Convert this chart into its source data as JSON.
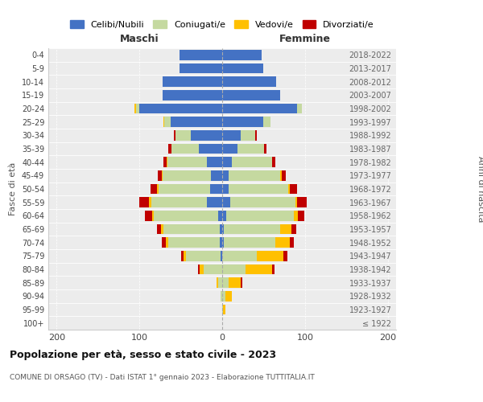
{
  "age_groups": [
    "100+",
    "95-99",
    "90-94",
    "85-89",
    "80-84",
    "75-79",
    "70-74",
    "65-69",
    "60-64",
    "55-59",
    "50-54",
    "45-49",
    "40-44",
    "35-39",
    "30-34",
    "25-29",
    "20-24",
    "15-19",
    "10-14",
    "5-9",
    "0-4"
  ],
  "birth_years": [
    "≤ 1922",
    "1923-1927",
    "1928-1932",
    "1933-1937",
    "1938-1942",
    "1943-1947",
    "1948-1952",
    "1953-1957",
    "1958-1962",
    "1963-1967",
    "1968-1972",
    "1973-1977",
    "1978-1982",
    "1983-1987",
    "1988-1992",
    "1993-1997",
    "1998-2002",
    "2003-2007",
    "2008-2012",
    "2013-2017",
    "2018-2022"
  ],
  "males": {
    "celibi": [
      0,
      0,
      0,
      0,
      0,
      2,
      3,
      3,
      5,
      18,
      15,
      14,
      18,
      28,
      38,
      62,
      100,
      72,
      72,
      52,
      52
    ],
    "coniugati": [
      0,
      0,
      2,
      5,
      22,
      42,
      62,
      68,
      78,
      68,
      62,
      58,
      48,
      33,
      18,
      8,
      4,
      0,
      0,
      0,
      0
    ],
    "vedovi": [
      0,
      0,
      0,
      2,
      5,
      3,
      3,
      3,
      2,
      2,
      2,
      1,
      1,
      0,
      0,
      1,
      2,
      0,
      0,
      0,
      0
    ],
    "divorziati": [
      0,
      0,
      0,
      0,
      2,
      3,
      5,
      5,
      8,
      12,
      8,
      5,
      4,
      4,
      2,
      0,
      0,
      0,
      0,
      0,
      0
    ]
  },
  "females": {
    "nubili": [
      0,
      0,
      0,
      0,
      0,
      0,
      2,
      2,
      5,
      10,
      8,
      8,
      12,
      18,
      22,
      50,
      90,
      70,
      65,
      50,
      48
    ],
    "coniugate": [
      0,
      1,
      4,
      8,
      28,
      42,
      62,
      68,
      82,
      78,
      72,
      62,
      48,
      33,
      18,
      8,
      6,
      0,
      0,
      0,
      0
    ],
    "vedove": [
      0,
      3,
      8,
      14,
      32,
      32,
      18,
      14,
      4,
      2,
      2,
      2,
      0,
      0,
      0,
      0,
      0,
      0,
      0,
      0,
      0
    ],
    "divorziate": [
      0,
      0,
      0,
      2,
      3,
      5,
      5,
      5,
      8,
      12,
      8,
      5,
      4,
      2,
      2,
      0,
      0,
      0,
      0,
      0,
      0
    ]
  },
  "colors": {
    "celibi": "#4472c4",
    "coniugati": "#c5d9a0",
    "vedovi": "#ffc000",
    "divorziati": "#c00000"
  },
  "xlim": [
    -210,
    210
  ],
  "xticks": [
    -200,
    -100,
    0,
    100,
    200
  ],
  "xticklabels": [
    "200",
    "100",
    "0",
    "100",
    "200"
  ],
  "title": "Popolazione per età, sesso e stato civile - 2023",
  "subtitle": "COMUNE DI ORSAGO (TV) - Dati ISTAT 1° gennaio 2023 - Elaborazione TUTTITALIA.IT",
  "ylabel": "Fasce di età",
  "ylabel_right": "Anni di nascita",
  "label_maschi": "Maschi",
  "label_femmine": "Femmine",
  "legend_labels": [
    "Celibi/Nubili",
    "Coniugati/e",
    "Vedovi/e",
    "Divorziati/e"
  ],
  "bar_height": 0.75,
  "background_color": "#ffffff",
  "plot_bg": "#ececec"
}
